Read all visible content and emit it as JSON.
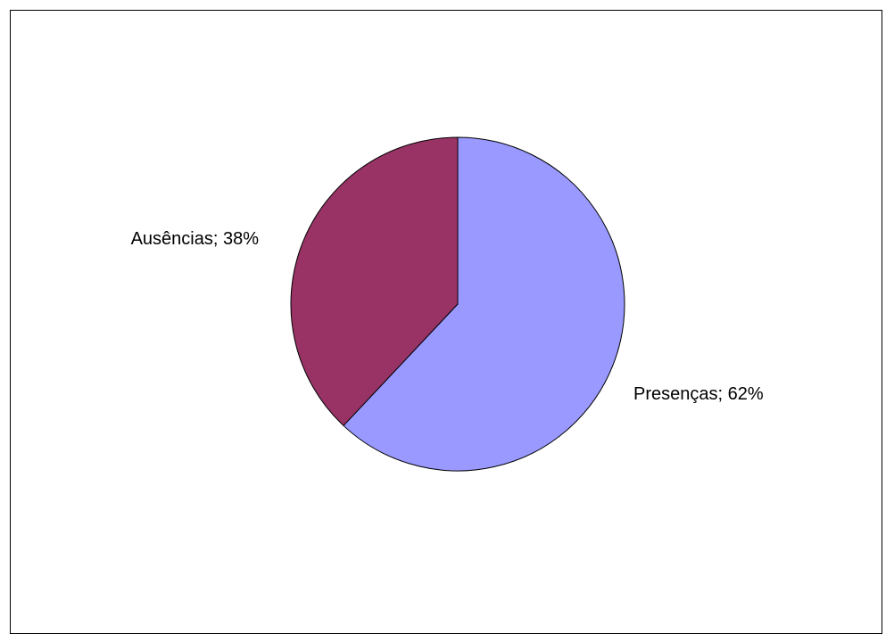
{
  "chart_data": {
    "type": "pie",
    "title": "",
    "slices": [
      {
        "name": "Presenças",
        "value": 62,
        "label": "Presenças; 62%",
        "color": "#9999FF"
      },
      {
        "name": "Ausências",
        "value": 38,
        "label": "Ausências; 38%",
        "color": "#993366"
      }
    ],
    "start_angle_deg": 0,
    "direction": "clockwise",
    "legend": "none"
  }
}
